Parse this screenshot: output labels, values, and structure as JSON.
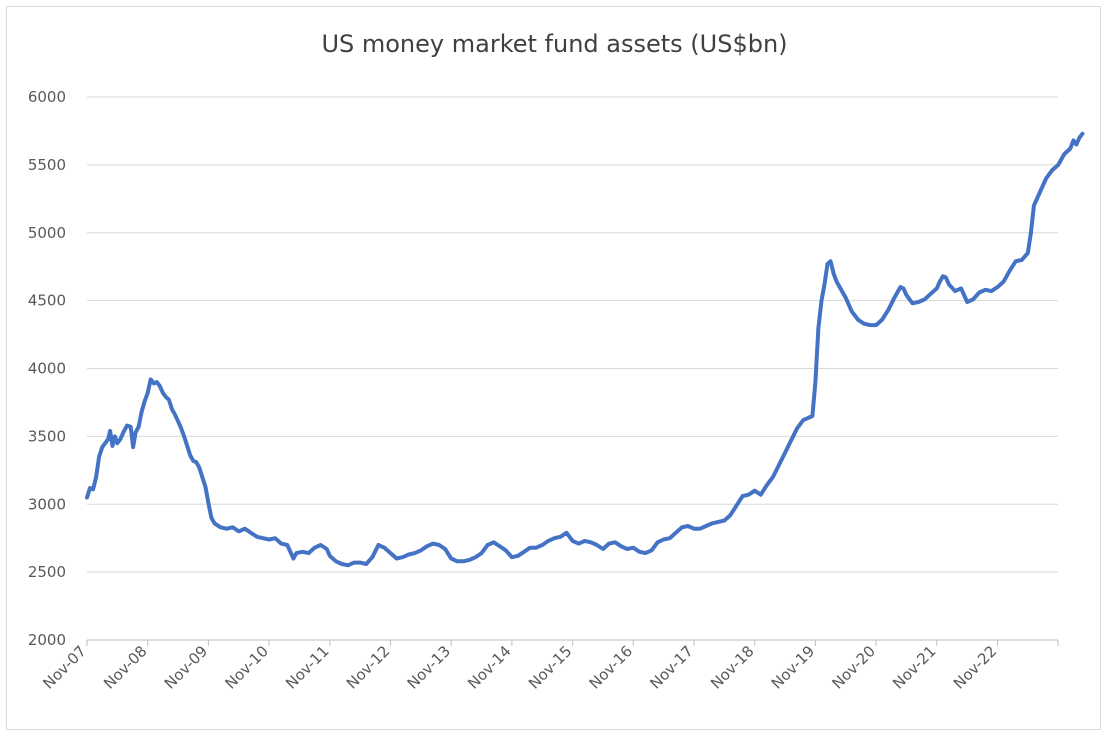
{
  "chart_data": {
    "type": "line",
    "title": "US money market fund assets (US$bn)",
    "xlabel": "",
    "ylabel": "",
    "ylim": [
      2000,
      6000
    ],
    "yticks": [
      2000,
      2500,
      3000,
      3500,
      4000,
      4500,
      5000,
      5500,
      6000
    ],
    "categories": [
      "Nov-07",
      "Nov-08",
      "Nov-09",
      "Nov-10",
      "Nov-11",
      "Nov-12",
      "Nov-13",
      "Nov-14",
      "Nov-15",
      "Nov-16",
      "Nov-17",
      "Nov-18",
      "Nov-19",
      "Nov-20",
      "Nov-21",
      "Nov-22"
    ],
    "grid": true,
    "legend": "none",
    "series": [
      {
        "color": "#4472C4",
        "x_unit": "years since Nov-07",
        "points": [
          [
            0.0,
            3050
          ],
          [
            0.05,
            3120
          ],
          [
            0.1,
            3110
          ],
          [
            0.15,
            3200
          ],
          [
            0.2,
            3350
          ],
          [
            0.25,
            3420
          ],
          [
            0.3,
            3450
          ],
          [
            0.35,
            3480
          ],
          [
            0.38,
            3540
          ],
          [
            0.42,
            3430
          ],
          [
            0.46,
            3500
          ],
          [
            0.5,
            3450
          ],
          [
            0.55,
            3480
          ],
          [
            0.6,
            3530
          ],
          [
            0.66,
            3580
          ],
          [
            0.72,
            3570
          ],
          [
            0.76,
            3420
          ],
          [
            0.8,
            3530
          ],
          [
            0.85,
            3570
          ],
          [
            0.9,
            3680
          ],
          [
            0.95,
            3760
          ],
          [
            1.0,
            3820
          ],
          [
            1.05,
            3920
          ],
          [
            1.1,
            3890
          ],
          [
            1.15,
            3900
          ],
          [
            1.2,
            3870
          ],
          [
            1.25,
            3820
          ],
          [
            1.3,
            3790
          ],
          [
            1.35,
            3770
          ],
          [
            1.4,
            3700
          ],
          [
            1.45,
            3660
          ],
          [
            1.5,
            3610
          ],
          [
            1.55,
            3560
          ],
          [
            1.6,
            3500
          ],
          [
            1.65,
            3430
          ],
          [
            1.7,
            3360
          ],
          [
            1.75,
            3320
          ],
          [
            1.8,
            3310
          ],
          [
            1.85,
            3270
          ],
          [
            1.9,
            3200
          ],
          [
            1.95,
            3130
          ],
          [
            2.0,
            3010
          ],
          [
            2.05,
            2900
          ],
          [
            2.1,
            2860
          ],
          [
            2.2,
            2830
          ],
          [
            2.3,
            2820
          ],
          [
            2.4,
            2830
          ],
          [
            2.5,
            2800
          ],
          [
            2.6,
            2820
          ],
          [
            2.7,
            2790
          ],
          [
            2.8,
            2760
          ],
          [
            2.9,
            2750
          ],
          [
            3.0,
            2740
          ],
          [
            3.1,
            2750
          ],
          [
            3.2,
            2710
          ],
          [
            3.3,
            2700
          ],
          [
            3.4,
            2600
          ],
          [
            3.45,
            2640
          ],
          [
            3.55,
            2650
          ],
          [
            3.65,
            2640
          ],
          [
            3.75,
            2680
          ],
          [
            3.85,
            2700
          ],
          [
            3.95,
            2670
          ],
          [
            4.0,
            2620
          ],
          [
            4.1,
            2580
          ],
          [
            4.2,
            2560
          ],
          [
            4.3,
            2550
          ],
          [
            4.4,
            2570
          ],
          [
            4.5,
            2570
          ],
          [
            4.6,
            2560
          ],
          [
            4.7,
            2610
          ],
          [
            4.8,
            2700
          ],
          [
            4.9,
            2680
          ],
          [
            5.0,
            2640
          ],
          [
            5.1,
            2600
          ],
          [
            5.2,
            2610
          ],
          [
            5.3,
            2630
          ],
          [
            5.4,
            2640
          ],
          [
            5.5,
            2660
          ],
          [
            5.6,
            2690
          ],
          [
            5.7,
            2710
          ],
          [
            5.8,
            2700
          ],
          [
            5.9,
            2670
          ],
          [
            6.0,
            2600
          ],
          [
            6.1,
            2580
          ],
          [
            6.2,
            2580
          ],
          [
            6.3,
            2590
          ],
          [
            6.4,
            2610
          ],
          [
            6.5,
            2640
          ],
          [
            6.6,
            2700
          ],
          [
            6.7,
            2720
          ],
          [
            6.8,
            2690
          ],
          [
            6.9,
            2660
          ],
          [
            7.0,
            2610
          ],
          [
            7.1,
            2620
          ],
          [
            7.2,
            2650
          ],
          [
            7.3,
            2680
          ],
          [
            7.4,
            2680
          ],
          [
            7.5,
            2700
          ],
          [
            7.6,
            2730
          ],
          [
            7.7,
            2750
          ],
          [
            7.8,
            2760
          ],
          [
            7.9,
            2790
          ],
          [
            8.0,
            2730
          ],
          [
            8.1,
            2710
          ],
          [
            8.2,
            2730
          ],
          [
            8.3,
            2720
          ],
          [
            8.4,
            2700
          ],
          [
            8.5,
            2670
          ],
          [
            8.6,
            2710
          ],
          [
            8.7,
            2720
          ],
          [
            8.8,
            2690
          ],
          [
            8.9,
            2670
          ],
          [
            9.0,
            2680
          ],
          [
            9.1,
            2650
          ],
          [
            9.2,
            2640
          ],
          [
            9.3,
            2660
          ],
          [
            9.4,
            2720
          ],
          [
            9.5,
            2740
          ],
          [
            9.6,
            2750
          ],
          [
            9.7,
            2790
          ],
          [
            9.8,
            2830
          ],
          [
            9.9,
            2840
          ],
          [
            10.0,
            2820
          ],
          [
            10.1,
            2820
          ],
          [
            10.2,
            2840
          ],
          [
            10.3,
            2860
          ],
          [
            10.4,
            2870
          ],
          [
            10.5,
            2880
          ],
          [
            10.6,
            2920
          ],
          [
            10.7,
            2990
          ],
          [
            10.8,
            3060
          ],
          [
            10.9,
            3070
          ],
          [
            11.0,
            3100
          ],
          [
            11.1,
            3070
          ],
          [
            11.2,
            3140
          ],
          [
            11.3,
            3200
          ],
          [
            11.4,
            3290
          ],
          [
            11.5,
            3380
          ],
          [
            11.6,
            3470
          ],
          [
            11.7,
            3560
          ],
          [
            11.8,
            3620
          ],
          [
            11.9,
            3640
          ],
          [
            11.95,
            3650
          ],
          [
            12.0,
            3900
          ],
          [
            12.05,
            4300
          ],
          [
            12.1,
            4500
          ],
          [
            12.15,
            4620
          ],
          [
            12.2,
            4770
          ],
          [
            12.25,
            4790
          ],
          [
            12.3,
            4700
          ],
          [
            12.35,
            4640
          ],
          [
            12.4,
            4600
          ],
          [
            12.5,
            4520
          ],
          [
            12.6,
            4420
          ],
          [
            12.7,
            4360
          ],
          [
            12.8,
            4330
          ],
          [
            12.9,
            4320
          ],
          [
            13.0,
            4320
          ],
          [
            13.1,
            4360
          ],
          [
            13.2,
            4430
          ],
          [
            13.3,
            4520
          ],
          [
            13.4,
            4600
          ],
          [
            13.45,
            4590
          ],
          [
            13.5,
            4540
          ],
          [
            13.6,
            4480
          ],
          [
            13.7,
            4490
          ],
          [
            13.8,
            4510
          ],
          [
            13.9,
            4550
          ],
          [
            14.0,
            4590
          ],
          [
            14.05,
            4640
          ],
          [
            14.1,
            4680
          ],
          [
            14.15,
            4670
          ],
          [
            14.2,
            4620
          ],
          [
            14.3,
            4570
          ],
          [
            14.4,
            4590
          ],
          [
            14.5,
            4490
          ],
          [
            14.6,
            4510
          ],
          [
            14.7,
            4560
          ],
          [
            14.8,
            4580
          ],
          [
            14.9,
            4570
          ],
          [
            15.0,
            4600
          ],
          [
            15.1,
            4640
          ],
          [
            15.2,
            4720
          ],
          [
            15.3,
            4790
          ],
          [
            15.4,
            4800
          ],
          [
            15.5,
            4850
          ],
          [
            15.55,
            5000
          ],
          [
            15.6,
            5200
          ],
          [
            15.7,
            5300
          ],
          [
            15.8,
            5400
          ],
          [
            15.9,
            5460
          ],
          [
            16.0,
            5500
          ],
          [
            16.1,
            5580
          ],
          [
            16.2,
            5620
          ],
          [
            16.25,
            5680
          ],
          [
            16.3,
            5650
          ],
          [
            16.35,
            5700
          ],
          [
            16.4,
            5730
          ]
        ]
      }
    ]
  }
}
